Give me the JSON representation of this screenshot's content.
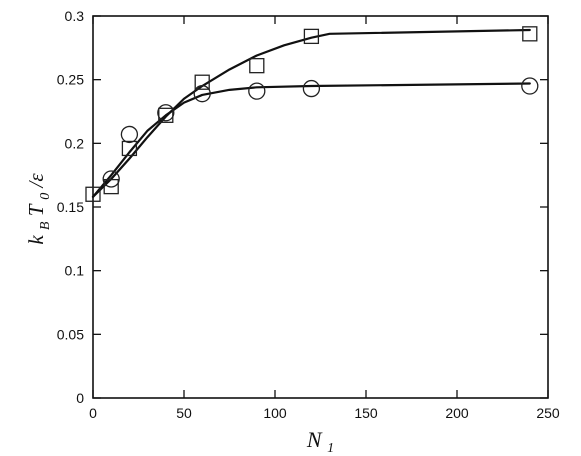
{
  "chart_data": {
    "type": "scatter",
    "title": "",
    "xlabel": {
      "main": "N",
      "sub": "1"
    },
    "ylabel": {
      "prefix": "k",
      "prefix_sub": "B",
      "main": "T",
      "main_sub": "0",
      "suffix": "/ε"
    },
    "xlim": [
      0,
      250
    ],
    "ylim": [
      0,
      0.3
    ],
    "xticks": [
      0,
      50,
      100,
      150,
      200,
      250
    ],
    "yticks": [
      0,
      0.05,
      0.1,
      0.15,
      0.2,
      0.25,
      0.3
    ],
    "xtick_labels": [
      "0",
      "50",
      "100",
      "150",
      "200",
      "250"
    ],
    "ytick_labels": [
      "0",
      "0.05",
      "0.1",
      "0.15",
      "0.2",
      "0.25",
      "0.3"
    ],
    "grid": false,
    "legend": "none",
    "series": [
      {
        "marker": "square",
        "points": [
          {
            "x": 0,
            "y": 0.16
          },
          {
            "x": 10,
            "y": 0.166
          },
          {
            "x": 20,
            "y": 0.196
          },
          {
            "x": 40,
            "y": 0.222
          },
          {
            "x": 60,
            "y": 0.248
          },
          {
            "x": 90,
            "y": 0.261
          },
          {
            "x": 120,
            "y": 0.284
          },
          {
            "x": 240,
            "y": 0.286
          }
        ],
        "fit": [
          {
            "x": 0,
            "y": 0.158
          },
          {
            "x": 10,
            "y": 0.172
          },
          {
            "x": 20,
            "y": 0.188
          },
          {
            "x": 30,
            "y": 0.205
          },
          {
            "x": 40,
            "y": 0.221
          },
          {
            "x": 50,
            "y": 0.235
          },
          {
            "x": 60,
            "y": 0.245
          },
          {
            "x": 75,
            "y": 0.258
          },
          {
            "x": 90,
            "y": 0.269
          },
          {
            "x": 105,
            "y": 0.277
          },
          {
            "x": 120,
            "y": 0.283
          },
          {
            "x": 130,
            "y": 0.286
          },
          {
            "x": 240,
            "y": 0.289
          }
        ]
      },
      {
        "marker": "circle",
        "points": [
          {
            "x": 10,
            "y": 0.172
          },
          {
            "x": 20,
            "y": 0.207
          },
          {
            "x": 40,
            "y": 0.224
          },
          {
            "x": 60,
            "y": 0.239
          },
          {
            "x": 90,
            "y": 0.241
          },
          {
            "x": 120,
            "y": 0.243
          },
          {
            "x": 240,
            "y": 0.245
          }
        ],
        "fit": [
          {
            "x": 0,
            "y": 0.158
          },
          {
            "x": 10,
            "y": 0.175
          },
          {
            "x": 20,
            "y": 0.193
          },
          {
            "x": 30,
            "y": 0.21
          },
          {
            "x": 40,
            "y": 0.222
          },
          {
            "x": 50,
            "y": 0.232
          },
          {
            "x": 60,
            "y": 0.238
          },
          {
            "x": 75,
            "y": 0.242
          },
          {
            "x": 90,
            "y": 0.244
          },
          {
            "x": 120,
            "y": 0.245
          },
          {
            "x": 240,
            "y": 0.247
          }
        ]
      }
    ]
  }
}
